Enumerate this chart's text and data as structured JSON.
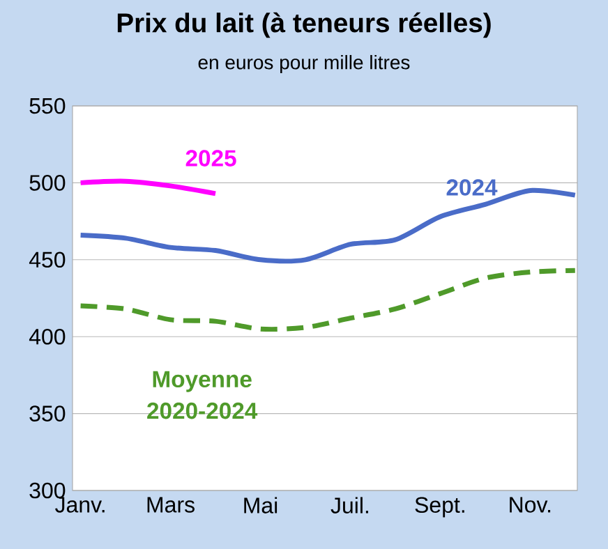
{
  "chart_data": {
    "type": "line",
    "title": "Prix du lait (à teneurs réelles)",
    "subtitle": "en euros pour mille litres",
    "categories": [
      "Janv.",
      null,
      "Mars",
      null,
      "Mai",
      null,
      "Juil.",
      null,
      "Sept.",
      null,
      "Nov.",
      null
    ],
    "series": [
      {
        "name": "2025",
        "color": "#ff00ff",
        "values": [
          500,
          501,
          498,
          493,
          null,
          null,
          null,
          null,
          null,
          null,
          null,
          null
        ]
      },
      {
        "name": "2024",
        "color": "#4a6cc8",
        "values": [
          466,
          464,
          458,
          456,
          450,
          450,
          460,
          463,
          478,
          486,
          495,
          492
        ]
      },
      {
        "name": "Moyenne 2020-2024",
        "color": "#4f9a2a",
        "line_style": "dashed",
        "values": [
          420,
          418,
          411,
          410,
          405,
          406,
          412,
          418,
          428,
          438,
          442,
          443
        ]
      }
    ],
    "ylim": [
      300,
      550
    ],
    "yticks": [
      300,
      350,
      400,
      450,
      500,
      550
    ],
    "grid": "y",
    "marker": "none"
  }
}
